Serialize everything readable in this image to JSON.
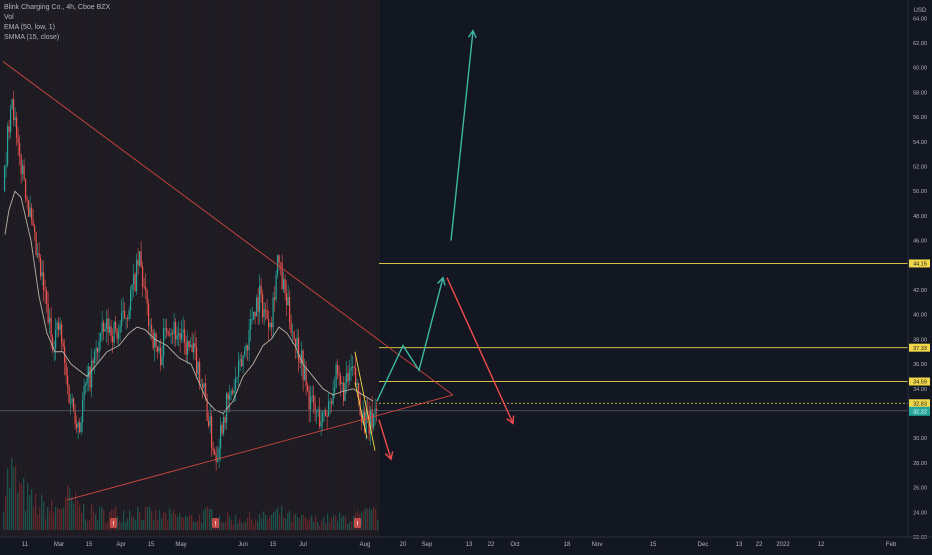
{
  "legend": {
    "title": "Blink Charging Co., 4h, Cboe BZX",
    "vol": "Vol",
    "ema": "EMA (50, low, 1)",
    "smma": "SMMA (15, close)"
  },
  "colors": {
    "background": "#131722",
    "up": "#26a69a",
    "down": "#ef5350",
    "ema": "#b8b3a4",
    "trendline": "#d0473f",
    "level": "#f0d84a",
    "arrow_up": "#3cb9a3",
    "arrow_down": "#ef4b4b",
    "current_price": "#26a69a",
    "axis_text": "#b2b5be"
  },
  "chart_data": {
    "type": "candlestick",
    "y_axis": {
      "unit": "USD",
      "ticks": [
        "22.00",
        "24.00",
        "26.00",
        "28.00",
        "30.00",
        "32.00",
        "34.00",
        "36.00",
        "38.00",
        "40.00",
        "42.00",
        "44.00",
        "46.00",
        "48.00",
        "50.00",
        "52.00",
        "54.00",
        "56.00",
        "58.00",
        "60.00",
        "62.00",
        "64.00"
      ],
      "ylim": [
        21.5,
        65.5
      ]
    },
    "x_axis": {
      "ticks": [
        "11",
        "Mar",
        "15",
        "Apr",
        "15",
        "May",
        "Jun",
        "15",
        "Jul",
        "Aug",
        "20",
        "Sep",
        "13",
        "22",
        "Oct",
        "18",
        "Nov",
        "15",
        "Dec",
        "13",
        "22",
        "2022",
        "12",
        "Feb"
      ],
      "tick_days": [
        11,
        28,
        43,
        59,
        74,
        89,
        120,
        135,
        150,
        181,
        200,
        212,
        233,
        244,
        256,
        282,
        297,
        325,
        350,
        368,
        378,
        390,
        409,
        444
      ]
    },
    "price_anchors": [
      [
        0,
        50.0
      ],
      [
        4,
        58.5
      ],
      [
        7,
        53.0
      ],
      [
        10,
        51.5
      ],
      [
        15,
        46.0
      ],
      [
        20,
        42.0
      ],
      [
        24,
        38.0
      ],
      [
        28,
        39.0
      ],
      [
        32,
        34.0
      ],
      [
        35,
        32.5
      ],
      [
        38,
        31.0
      ],
      [
        40,
        33.5
      ],
      [
        44,
        35.5
      ],
      [
        48,
        38.0
      ],
      [
        52,
        39.0
      ],
      [
        57,
        38.5
      ],
      [
        62,
        40.5
      ],
      [
        66,
        43.0
      ],
      [
        68,
        44.5
      ],
      [
        71,
        41.0
      ],
      [
        75,
        38.0
      ],
      [
        78,
        36.5
      ],
      [
        82,
        39.5
      ],
      [
        87,
        38.5
      ],
      [
        91,
        37.5
      ],
      [
        96,
        36.5
      ],
      [
        100,
        34.0
      ],
      [
        104,
        30.0
      ],
      [
        106,
        28.5
      ],
      [
        110,
        32.0
      ],
      [
        114,
        33.5
      ],
      [
        118,
        35.5
      ],
      [
        122,
        38.0
      ],
      [
        125,
        40.5
      ],
      [
        128,
        41.5
      ],
      [
        131,
        40.0
      ],
      [
        134,
        40.0
      ],
      [
        137,
        44.5
      ],
      [
        140,
        42.0
      ],
      [
        145,
        38.5
      ],
      [
        149,
        36.5
      ],
      [
        152,
        33.5
      ],
      [
        156,
        32.0
      ],
      [
        160,
        31.5
      ],
      [
        163,
        33.0
      ],
      [
        166,
        35.0
      ],
      [
        168,
        34.0
      ],
      [
        171,
        34.0
      ],
      [
        174,
        35.5
      ],
      [
        176,
        34.5
      ],
      [
        178,
        33.0
      ],
      [
        180,
        31.5
      ],
      [
        183,
        31.0
      ],
      [
        186,
        32.5
      ]
    ],
    "ema_anchors": [
      [
        1,
        46.5
      ],
      [
        3,
        48.5
      ],
      [
        6,
        50.0
      ],
      [
        9,
        49.5
      ],
      [
        14,
        46.0
      ],
      [
        18,
        41.5
      ],
      [
        22,
        38.5
      ],
      [
        26,
        37.0
      ],
      [
        30,
        37.0
      ],
      [
        34,
        36.0
      ],
      [
        38,
        35.5
      ],
      [
        42,
        35.0
      ],
      [
        47,
        36.0
      ],
      [
        52,
        37.0
      ],
      [
        58,
        37.5
      ],
      [
        63,
        38.5
      ],
      [
        67,
        39.0
      ],
      [
        71,
        38.8
      ],
      [
        76,
        38.0
      ],
      [
        82,
        37.5
      ],
      [
        88,
        36.5
      ],
      [
        94,
        36.0
      ],
      [
        98,
        34.5
      ],
      [
        102,
        33.0
      ],
      [
        106,
        32.3
      ],
      [
        110,
        32.0
      ],
      [
        115,
        33.0
      ],
      [
        120,
        35.0
      ],
      [
        125,
        36.0
      ],
      [
        130,
        37.5
      ],
      [
        134,
        38.0
      ],
      [
        138,
        39.0
      ],
      [
        142,
        38.5
      ],
      [
        146,
        37.5
      ],
      [
        150,
        36.0
      ],
      [
        155,
        35.0
      ],
      [
        160,
        34.0
      ],
      [
        165,
        33.5
      ],
      [
        170,
        33.8
      ],
      [
        175,
        34.0
      ],
      [
        180,
        33.5
      ],
      [
        185,
        33.0
      ]
    ],
    "volume_profile": [
      [
        0,
        0.75
      ],
      [
        4,
        1.0
      ],
      [
        8,
        0.7
      ],
      [
        14,
        0.5
      ],
      [
        20,
        0.4
      ],
      [
        26,
        0.35
      ],
      [
        32,
        0.55
      ],
      [
        36,
        0.45
      ],
      [
        42,
        0.3
      ],
      [
        50,
        0.28
      ],
      [
        60,
        0.3
      ],
      [
        66,
        0.35
      ],
      [
        75,
        0.25
      ],
      [
        85,
        0.25
      ],
      [
        95,
        0.2
      ],
      [
        104,
        0.3
      ],
      [
        110,
        0.2
      ],
      [
        120,
        0.2
      ],
      [
        130,
        0.22
      ],
      [
        138,
        0.3
      ],
      [
        145,
        0.2
      ],
      [
        155,
        0.18
      ],
      [
        165,
        0.2
      ],
      [
        175,
        0.22
      ],
      [
        186,
        0.3
      ]
    ],
    "volume_marker_days": [
      55,
      106,
      177
    ],
    "current_price": "32.22",
    "current_price_value": 32.22,
    "dotted_level": "32.83",
    "dotted_level_value": 32.83,
    "levels": [
      {
        "label": "44.15",
        "value": 44.15
      },
      {
        "label": "37.33",
        "value": 37.33
      },
      {
        "label": "34.59",
        "value": 34.59
      }
    ],
    "trendlines": [
      {
        "from": [
          0,
          60.5
        ],
        "to": [
          225,
          33.5
        ]
      },
      {
        "from": [
          32,
          25.0
        ],
        "to": [
          225,
          33.5
        ]
      }
    ],
    "wedge": [
      {
        "from": [
          176,
          37.0
        ],
        "to": [
          186,
          29.0
        ]
      },
      {
        "from": [
          176,
          34.5
        ],
        "to": [
          182,
          30.0
        ]
      }
    ],
    "projection_arrows": [
      {
        "direction": "up",
        "points": [
          [
            187,
            33.0
          ],
          [
            200,
            37.5
          ],
          [
            208,
            35.5
          ],
          [
            220,
            43.0
          ]
        ]
      },
      {
        "direction": "down",
        "points": [
          [
            188,
            31.5
          ],
          [
            194,
            28.3
          ]
        ]
      },
      {
        "direction": "down",
        "points": [
          [
            222,
            43.0
          ],
          [
            255,
            31.2
          ]
        ]
      },
      {
        "direction": "up",
        "points": [
          [
            224,
            46.0
          ],
          [
            235,
            63.0
          ]
        ]
      }
    ]
  }
}
